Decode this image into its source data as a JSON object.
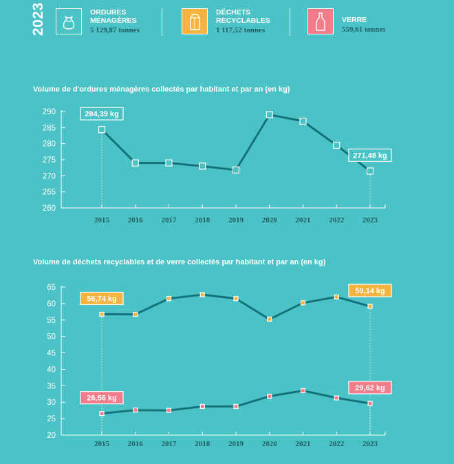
{
  "year": "2023",
  "kpis": [
    {
      "label_line1": "ORDURES",
      "label_line2": "MÉNAGÈRES",
      "value": "5 129,87 tonnes",
      "color": "#4bc2c5",
      "icon": "trash-bag-icon"
    },
    {
      "label_line1": "DÉCHETS",
      "label_line2": "RECYCLABLES",
      "value": "1 117,52 tonnes",
      "color": "#f6b33d",
      "icon": "carton-icon"
    },
    {
      "label_line1": "VERRE",
      "label_line2": "",
      "value": "559,61 tonnes",
      "color": "#f17d8b",
      "icon": "bottle-icon"
    }
  ],
  "colors": {
    "background": "#4bc2c5",
    "line": "#14737a",
    "household": "#4bc2c5",
    "recyclable": "#f6b33d",
    "glass": "#f17d8b",
    "year_text": "#1f5d62"
  },
  "chart_data": [
    {
      "type": "line",
      "title": "Volume de d'ordures ménagères collectés par habitant et par an (en kg)",
      "x": [
        "2015",
        "2016",
        "2017",
        "2018",
        "2019",
        "2020",
        "2021",
        "2022",
        "2023"
      ],
      "ylim": [
        260,
        290
      ],
      "yticks": [
        260,
        265,
        270,
        275,
        280,
        285,
        290
      ],
      "series": [
        {
          "values": [
            284.39,
            274,
            274,
            273,
            271.8,
            289,
            287,
            279.5,
            271.48
          ],
          "color": "household",
          "labels": [
            {
              "index": 0,
              "text": "284,39 kg"
            },
            {
              "index": 8,
              "text": "271,48 kg"
            }
          ]
        }
      ]
    },
    {
      "type": "line",
      "title": "Volume de déchets recyclables et de verre collectés par habitant et par an (en kg)",
      "x": [
        "2015",
        "2016",
        "2017",
        "2018",
        "2019",
        "2020",
        "2021",
        "2022",
        "2023"
      ],
      "ylim": [
        20,
        65
      ],
      "yticks": [
        20,
        25,
        30,
        35,
        40,
        45,
        50,
        55,
        60,
        65
      ],
      "series": [
        {
          "values": [
            56.74,
            56.7,
            61.5,
            62.7,
            61.5,
            55.2,
            60.2,
            62,
            59.14
          ],
          "color": "recyclable",
          "labels": [
            {
              "index": 0,
              "text": "56,74 kg"
            },
            {
              "index": 8,
              "text": "59,14 kg"
            }
          ]
        },
        {
          "values": [
            26.56,
            27.6,
            27.5,
            28.7,
            28.7,
            31.8,
            33.5,
            31.3,
            29.62
          ],
          "color": "glass",
          "labels": [
            {
              "index": 0,
              "text": "26,56 kg"
            },
            {
              "index": 8,
              "text": "29,62 kg"
            }
          ]
        }
      ]
    }
  ]
}
